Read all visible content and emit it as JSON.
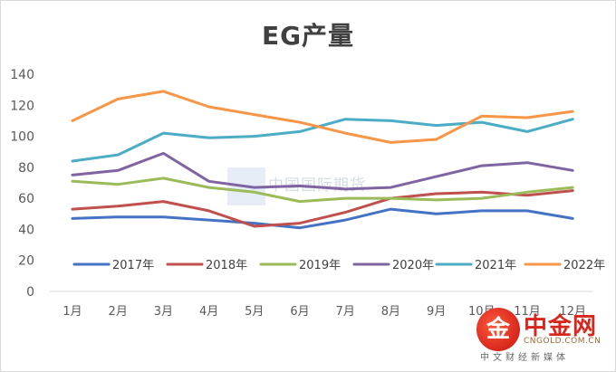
{
  "chart_data": {
    "type": "line",
    "title": "EG产量",
    "categories": [
      "1月",
      "2月",
      "3月",
      "4月",
      "5月",
      "6月",
      "7月",
      "8月",
      "9月",
      "10月",
      "11月",
      "12月"
    ],
    "yticks": [
      "0",
      "20",
      "40",
      "60",
      "80",
      "100",
      "120",
      "140"
    ],
    "ylim": [
      0,
      140
    ],
    "grid": false,
    "legend_position": "inside-bottom",
    "series": [
      {
        "name": "2017年",
        "color": "#4472c4",
        "values": [
          47,
          48,
          48,
          46,
          44,
          41,
          46,
          53,
          50,
          52,
          52,
          47
        ]
      },
      {
        "name": "2018年",
        "color": "#c0504d",
        "values": [
          53,
          55,
          58,
          52,
          42,
          44,
          51,
          60,
          63,
          64,
          62,
          65
        ]
      },
      {
        "name": "2019年",
        "color": "#9bbb59",
        "values": [
          71,
          69,
          73,
          67,
          64,
          58,
          60,
          60,
          59,
          60,
          64,
          67
        ]
      },
      {
        "name": "2020年",
        "color": "#8064a2",
        "values": [
          75,
          78,
          89,
          71,
          67,
          68,
          66,
          67,
          74,
          81,
          83,
          78
        ]
      },
      {
        "name": "2021年",
        "color": "#4bacc6",
        "values": [
          84,
          88,
          102,
          99,
          100,
          103,
          111,
          110,
          107,
          109,
          103,
          111
        ]
      },
      {
        "name": "2022年",
        "color": "#f79646",
        "values": [
          110,
          124,
          129,
          119,
          114,
          109,
          102,
          96,
          98,
          113,
          112,
          116
        ]
      }
    ]
  },
  "watermark": "中国国际期货",
  "logo": {
    "mark": "金",
    "brand": "中金网",
    "url": "CNGOLD.COM.CN",
    "sub": "中文财经新媒体"
  }
}
